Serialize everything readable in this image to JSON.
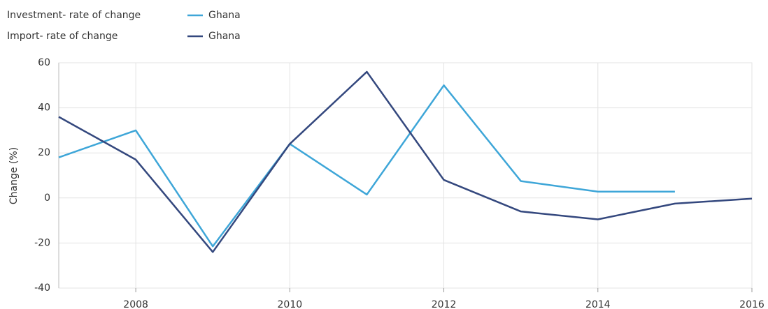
{
  "chart_data": {
    "type": "line",
    "y_label": "Change (%)",
    "x": [
      2007,
      2008,
      2009,
      2010,
      2011,
      2012,
      2013,
      2014,
      2015,
      2016
    ],
    "xlim": [
      2007,
      2016
    ],
    "xticks": [
      2008,
      2010,
      2012,
      2014,
      2016
    ],
    "ylim": [
      -40,
      60
    ],
    "yticks": [
      -40,
      -20,
      0,
      20,
      40,
      60
    ],
    "grid": true,
    "series": [
      {
        "group": "Investment- rate of change",
        "name": "Ghana",
        "color": "#3ea6d8",
        "values": [
          18,
          30,
          -21.5,
          24,
          1.5,
          50,
          7.5,
          2.8,
          2.8,
          null
        ]
      },
      {
        "group": "Import- rate of change",
        "name": "Ghana",
        "color": "#34487e",
        "values": [
          36,
          17,
          -24,
          24,
          56,
          8,
          -6,
          -9.5,
          -2.5,
          -0.3
        ]
      }
    ]
  }
}
